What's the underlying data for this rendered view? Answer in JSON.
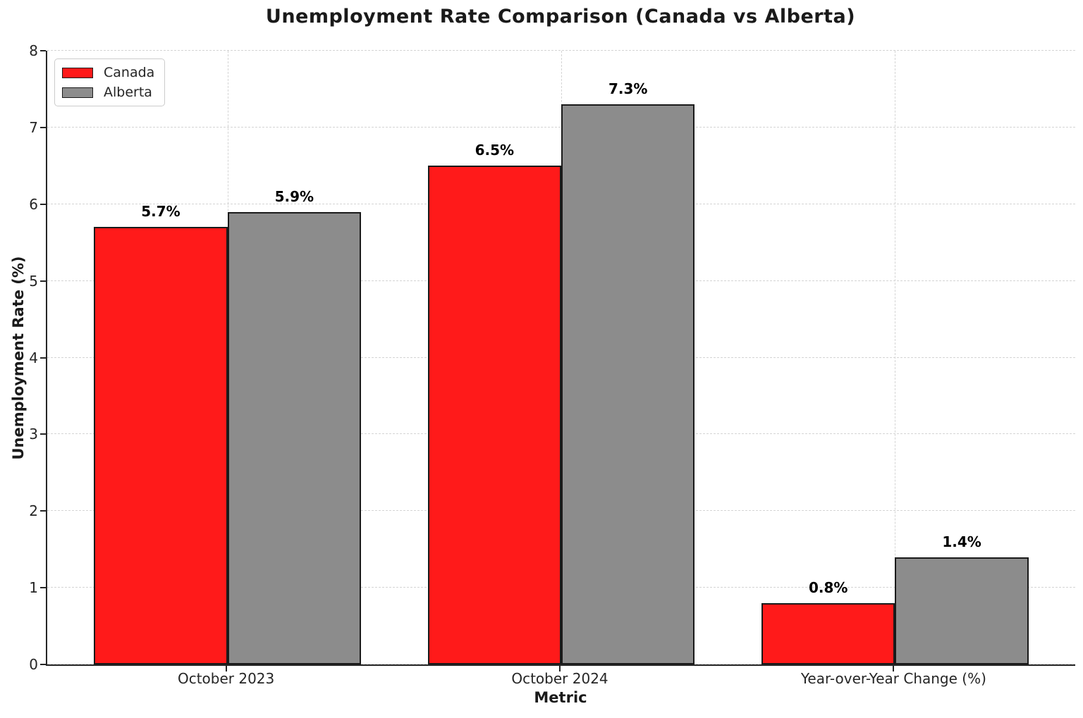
{
  "chart_data": {
    "type": "bar",
    "title": "Unemployment Rate Comparison (Canada vs Alberta)",
    "xlabel": "Metric",
    "ylabel": "Unemployment Rate (%)",
    "categories": [
      "October 2023",
      "October 2024",
      "Year-over-Year Change (%)"
    ],
    "series": [
      {
        "name": "Canada",
        "color": "#ff1a1a",
        "values": [
          5.7,
          6.5,
          0.8
        ],
        "value_labels": [
          "5.7%",
          "6.5%",
          "0.8%"
        ]
      },
      {
        "name": "Alberta",
        "color": "#8c8c8c",
        "values": [
          5.9,
          7.3,
          1.4
        ],
        "value_labels": [
          "5.9%",
          "7.3%",
          "1.4%"
        ]
      }
    ],
    "ylim": [
      0,
      8
    ],
    "yticks": [
      0,
      1,
      2,
      3,
      4,
      5,
      6,
      7,
      8
    ],
    "xlim": [
      -0.54,
      2.54
    ],
    "bar_width": 0.4,
    "bar_group_offset": 0.2,
    "edge_color": "#1a1a1a",
    "grid": {
      "style": "dashed",
      "color": "#d4d4d4",
      "horizontal": true,
      "vertical": true
    },
    "legend": {
      "position": "upper-left"
    }
  }
}
